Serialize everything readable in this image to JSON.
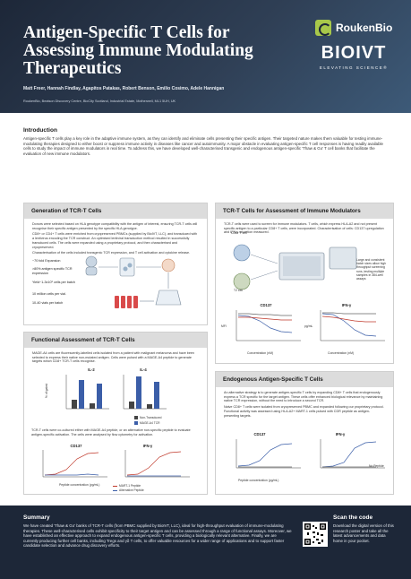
{
  "header": {
    "title": "Antigen-Specific T Cells for Assessing Immune Modulating Therapeutics",
    "authors": "Matt Freer, Hannah Findlay, Agapitos Patakas, Robert Benson, Emilio Cosimo, Adele Hannigan",
    "affiliation": "RoukenBio, Beatson Discovery Centre, BioCity Scotland, Industrial Estate, Motherwell, ML1 5UH, UK",
    "logo_rouken": "RoukenBio",
    "logo_bioivt": "BIOIVT",
    "logo_bioivt_tagline": "ELEVATING SCIENCE®"
  },
  "introduction": {
    "title": "Introduction",
    "text": "Antigen-specific T cells play a key role in the adaptive immune system, as they can identify and eliminate cells presenting their specific antigen. Their targeted nature makes them valuable for testing immune-modulating therapies designed to either boost or suppress immune activity in diseases like cancer and autoimmunity. A major obstacle in evaluating antigen-specific T cell responses is having readily available cells to study the impact of immune modulators in real time. To address this, we have developed well-characterised transgenic and endogenous antigen-specific 'Thaw & Go' T cell banks that facilitate the evaluation of new immune modulators."
  },
  "generation": {
    "title": "Generation of TCR-T Cells",
    "text1": "Donors were selected based on HLA genotype compatibility with the antigen of interest, ensuring TCR-T cells will recognise their specific antigen presented by the specific HLA genotype.",
    "text2": "CD8+ or CD4+ T cells were enriched from cryopreserved PBMCs (supplied by BioIVT, LLC), and transduced with a lentivirus encoding the TCR construct. An optimised lentiviral transduction method resulted in successfully transduced cells. The cells were expanded using a proprietary protocol, and then characterised and cryopreserved.",
    "text3": "Characterisation of the cells included transgenic TCR expression, and T cell activation and cytokine release.",
    "bullets": [
      "~70 fold Expansion",
      ">80% antigen specific TCR expression",
      "Yield~1-3x10⁹ cells per batch",
      "10 million cells per vial.",
      "10-40 vials per batch"
    ],
    "flow_labels": [
      "Donor PBMCs",
      "CD8+ T cells",
      "Lentiviral transduction",
      "Expansion",
      "Proprietary expansion protocol",
      "Cryopreserved"
    ]
  },
  "functional": {
    "title": "Functional Assessment of TCR-T Cells",
    "text1": "MAGE-A4 cells are fluorescently-labelled cells isolated from a patient with malignant melanoma and have been selected to express their native non-mutated antigen. Cells were pulsed with a MAGE-A4 peptide to generate targets which CD8+ TCR-T cells recognise.",
    "text2": "TCR-T cells were co-cultured either with MAGE-A4 peptide, or an alternative non-specific peptide to evaluate antigen-specific activation. The cells were analysed by flow cytometry for activation.",
    "chart_titles": [
      "IL-2",
      "IL-4"
    ],
    "legend": [
      "Non-Transduced",
      "MAGE-A4 TCR"
    ],
    "ylabel": "% of gated",
    "dose_titles": [
      "CD137",
      "IFN-γ"
    ],
    "dose_xlabel": "Peptide concentration (pg/mL)",
    "dose_legend": [
      "MART-1 Peptide",
      "Alternative Peptide"
    ],
    "dose_ylabel_left": "Median (%)",
    "dose_ylabel_right": "IFN-γ (pg/mL)"
  },
  "tcr_assess": {
    "title": "TCR-T Cells for Assessment of Immune Modulators",
    "text": "TCR-T cells were used to screen for immune modulators. T cells, which express HLA-A2 and not present specific antigen to a particular CD8+ T cells, were incorporated. Characterisation of cells: CD137 upregulation and IFN-γ secretion measured.",
    "diagram_labels": [
      "CD8+ T cell",
      "T2 cell",
      "Large and consistent batch sizes allow high throughput screening runs, testing multiple samples in 384-well assays"
    ],
    "charts": [
      {
        "title": "CD137",
        "ylabel": "MFI",
        "xlabel": "Concentration (nM)"
      },
      {
        "title": "IFN-γ",
        "ylabel": "pg/mL",
        "xlabel": "Concentration (nM)"
      }
    ],
    "x_ticks": [
      "0.01",
      "0.1",
      "1",
      "10",
      "100",
      "1000"
    ]
  },
  "endogenous": {
    "title": "Endogenous Antigen-Specific T Cells",
    "text1": "An alternative strategy is to generate antigen-specific T cells by expanding CD8+ T cells that endogenously express a TCR specific for the target antigen. These cells offer enhanced biological relevance by maintaining native TCR expression, without the need to introduce a second TCR.",
    "text2": "Naive CD8+ T cells were isolated from cryopreserved PBMC and expanded following our proprietary protocol. Functional activity was assessed using HLA-A2+ MART-1 cells pulsed with CDR peptide as antigen-presenting targets.",
    "chart_titles": [
      "CD137",
      "IFN-γ"
    ],
    "xlabel": "Peptide concentration (pg/mL)",
    "legend": "No Peptide"
  },
  "summary": {
    "title": "Summary",
    "text": "We have created 'Thaw & Go' banks of TCR-T cells (from PBMC supplied by BioIVT, LLC), ideal for high-throughput evaluation of immune-modulating therapies. These well-characterised cells exhibit specificity to their target antigen and can be assessed through a range of functional assays. Moreover, we have established an effective approach to expand endogenous antigen-specific T cells, providing a biologically relevant alternative. Finally, we are currently producing further cell banks, including Tregs and γδ T cells, to offer valuable resources for a wider range of applications and to support faster candidate selection and advance drug discovery efforts."
  },
  "scan": {
    "title": "Scan the code",
    "text": "Download the digital version of this research poster and take all the latest advancements and data home in your pocket."
  },
  "colors": {
    "header": "#1d2738",
    "accent_blue": "#3b5ea8",
    "accent_red": "#c0392b",
    "lime": "#a8c84a"
  }
}
